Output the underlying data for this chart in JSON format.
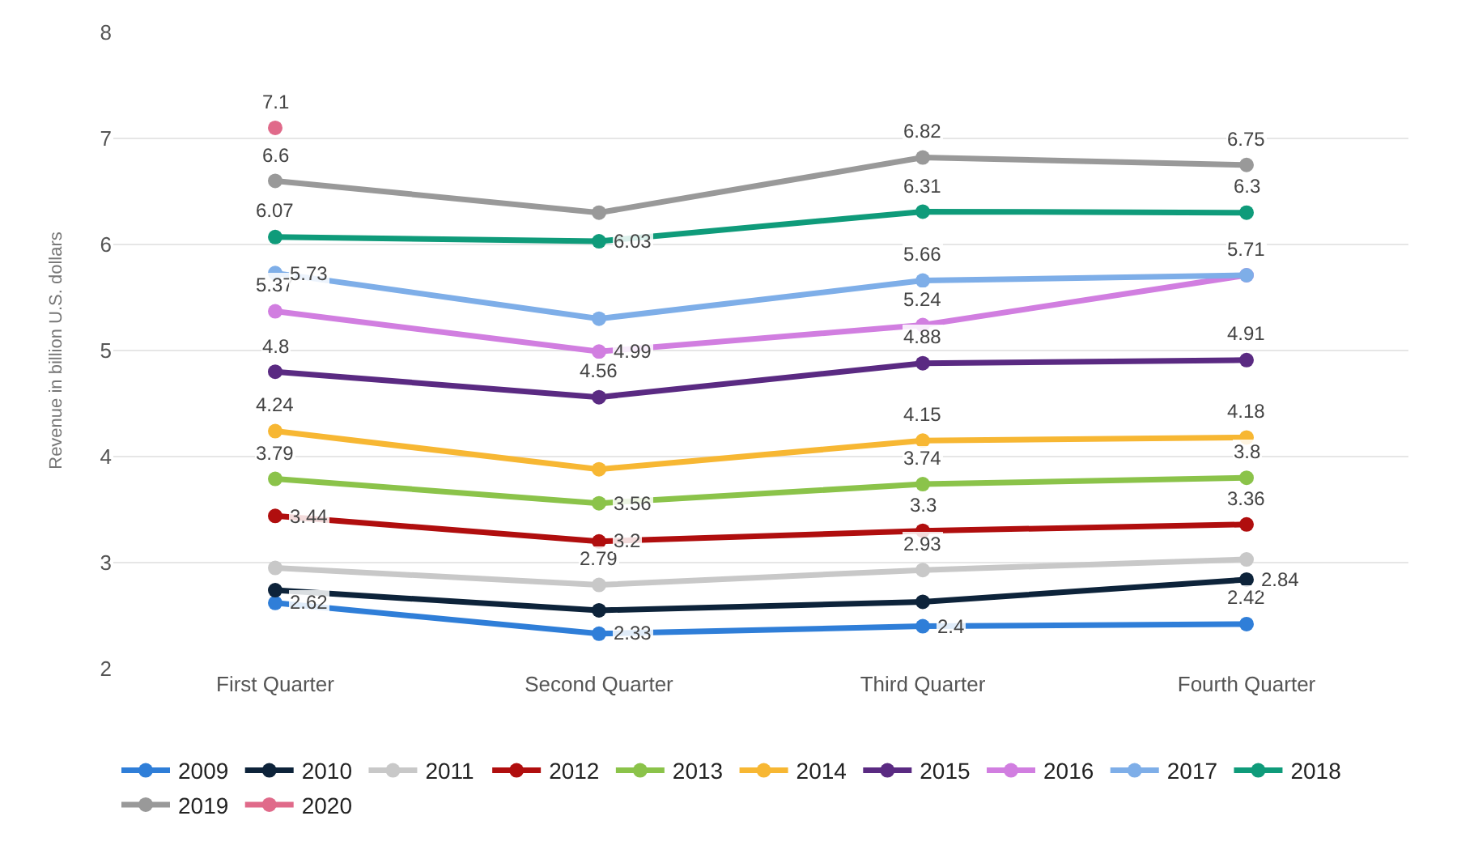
{
  "chart_data": {
    "type": "line",
    "ylabel": "Revenue in billion U.S. dollars",
    "categories": [
      "First Quarter",
      "Second Quarter",
      "Third Quarter",
      "Fourth Quarter"
    ],
    "ylim": [
      2,
      8
    ],
    "yticks": [
      2,
      3,
      4,
      5,
      6,
      7,
      8
    ],
    "grid": "y",
    "legend": "bottom",
    "marker": "circle",
    "series": [
      {
        "name": "2009",
        "color": "#2f7ed8",
        "values": [
          2.62,
          2.33,
          2.4,
          2.42
        ],
        "value_labels": [
          "2.62",
          "2.33",
          "2.4",
          "2.42"
        ]
      },
      {
        "name": "2010",
        "color": "#0d233a",
        "values": [
          2.74,
          2.55,
          2.63,
          2.84
        ],
        "value_labels": [
          null,
          null,
          null,
          "2.84"
        ]
      },
      {
        "name": "2011",
        "color": "#c8c8c8",
        "values": [
          2.95,
          2.79,
          2.93,
          3.03
        ],
        "value_labels": [
          null,
          "2.79",
          "2.93",
          null
        ]
      },
      {
        "name": "2012",
        "color": "#b00e0e",
        "values": [
          3.44,
          3.2,
          3.3,
          3.36
        ],
        "value_labels": [
          "3.44",
          "3.2",
          "3.3",
          "3.36"
        ]
      },
      {
        "name": "2013",
        "color": "#8bc34a",
        "values": [
          3.79,
          3.56,
          3.74,
          3.8
        ],
        "value_labels": [
          "3.79",
          "3.56",
          "3.74",
          "3.8"
        ]
      },
      {
        "name": "2014",
        "color": "#f7b733",
        "values": [
          4.24,
          3.88,
          4.15,
          4.18
        ],
        "value_labels": [
          "4.24",
          null,
          "4.15",
          "4.18"
        ]
      },
      {
        "name": "2015",
        "color": "#5a2a82",
        "values": [
          4.8,
          4.56,
          4.88,
          4.91
        ],
        "value_labels": [
          "4.8",
          "4.56",
          "4.88",
          "4.91"
        ]
      },
      {
        "name": "2016",
        "color": "#d17ee0",
        "values": [
          5.37,
          4.99,
          5.24,
          5.71
        ],
        "value_labels": [
          "5.37",
          "4.99",
          "5.24",
          null
        ]
      },
      {
        "name": "2017",
        "color": "#7eaee8",
        "values": [
          5.73,
          5.3,
          5.66,
          5.71
        ],
        "value_labels": [
          "5.73",
          null,
          "5.66",
          "5.71"
        ]
      },
      {
        "name": "2018",
        "color": "#0f9b7a",
        "values": [
          6.07,
          6.03,
          6.31,
          6.3
        ],
        "value_labels": [
          "6.07",
          "6.03",
          "6.31",
          "6.3"
        ]
      },
      {
        "name": "2019",
        "color": "#999999",
        "values": [
          6.6,
          6.3,
          6.82,
          6.75
        ],
        "value_labels": [
          "6.6",
          null,
          "6.82",
          "6.75"
        ]
      },
      {
        "name": "2020",
        "color": "#e06a8a",
        "values": [
          7.1,
          null,
          null,
          null
        ],
        "value_labels": [
          "7.1",
          null,
          null,
          null
        ]
      }
    ]
  }
}
